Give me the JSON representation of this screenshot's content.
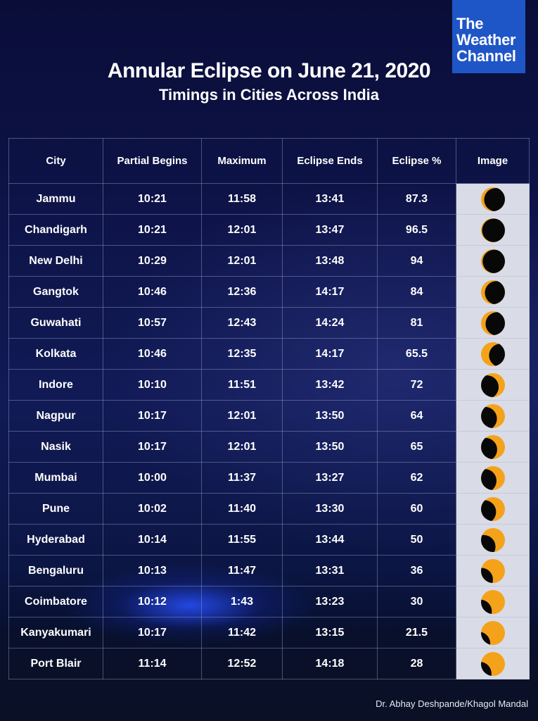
{
  "logo": {
    "line1": "The",
    "line2": "Weather",
    "line3": "Channel"
  },
  "title": "Annular Eclipse on June 21, 2020",
  "subtitle": "Timings in Cities Across India",
  "table": {
    "headers": [
      "City",
      "Partial Begins",
      "Maximum",
      "Eclipse Ends",
      "Eclipse %",
      "Image"
    ],
    "rows": [
      {
        "city": "Jammu",
        "partial_begins": "10:21",
        "maximum": "11:58",
        "eclipse_ends": "13:41",
        "eclipse_pct": "87.3"
      },
      {
        "city": "Chandigarh",
        "partial_begins": "10:21",
        "maximum": "12:01",
        "eclipse_ends": "13:47",
        "eclipse_pct": "96.5"
      },
      {
        "city": "New Delhi",
        "partial_begins": "10:29",
        "maximum": "12:01",
        "eclipse_ends": "13:48",
        "eclipse_pct": "94"
      },
      {
        "city": "Gangtok",
        "partial_begins": "10:46",
        "maximum": "12:36",
        "eclipse_ends": "14:17",
        "eclipse_pct": "84"
      },
      {
        "city": "Guwahati",
        "partial_begins": "10:57",
        "maximum": "12:43",
        "eclipse_ends": "14:24",
        "eclipse_pct": "81"
      },
      {
        "city": "Kolkata",
        "partial_begins": "10:46",
        "maximum": "12:35",
        "eclipse_ends": "14:17",
        "eclipse_pct": "65.5"
      },
      {
        "city": "Indore",
        "partial_begins": "10:10",
        "maximum": "11:51",
        "eclipse_ends": "13:42",
        "eclipse_pct": "72"
      },
      {
        "city": "Nagpur",
        "partial_begins": "10:17",
        "maximum": "12:01",
        "eclipse_ends": "13:50",
        "eclipse_pct": "64"
      },
      {
        "city": "Nasik",
        "partial_begins": "10:17",
        "maximum": "12:01",
        "eclipse_ends": "13:50",
        "eclipse_pct": "65"
      },
      {
        "city": "Mumbai",
        "partial_begins": "10:00",
        "maximum": "11:37",
        "eclipse_ends": "13:27",
        "eclipse_pct": "62"
      },
      {
        "city": "Pune",
        "partial_begins": "10:02",
        "maximum": "11:40",
        "eclipse_ends": "13:30",
        "eclipse_pct": "60"
      },
      {
        "city": "Hyderabad",
        "partial_begins": "10:14",
        "maximum": "11:55",
        "eclipse_ends": "13:44",
        "eclipse_pct": "50"
      },
      {
        "city": "Bengaluru",
        "partial_begins": "10:13",
        "maximum": "11:47",
        "eclipse_ends": "13:31",
        "eclipse_pct": "36"
      },
      {
        "city": "Coimbatore",
        "partial_begins": "10:12",
        "maximum": "1:43",
        "eclipse_ends": "13:23",
        "eclipse_pct": "30"
      },
      {
        "city": "Kanyakumari",
        "partial_begins": "10:17",
        "maximum": "11:42",
        "eclipse_ends": "13:15",
        "eclipse_pct": "21.5"
      },
      {
        "city": "Port Blair",
        "partial_begins": "11:14",
        "maximum": "12:52",
        "eclipse_ends": "14:18",
        "eclipse_pct": "28"
      }
    ]
  },
  "icons": {
    "eclipse": "eclipse-icon"
  },
  "colors": {
    "sun": "#f5a21b",
    "moon": "#080808",
    "image_column_bg": "#d9dce7",
    "logo_bg": "#1f56c7"
  },
  "credit": "Dr. Abhay Deshpande/Khagol Mandal"
}
